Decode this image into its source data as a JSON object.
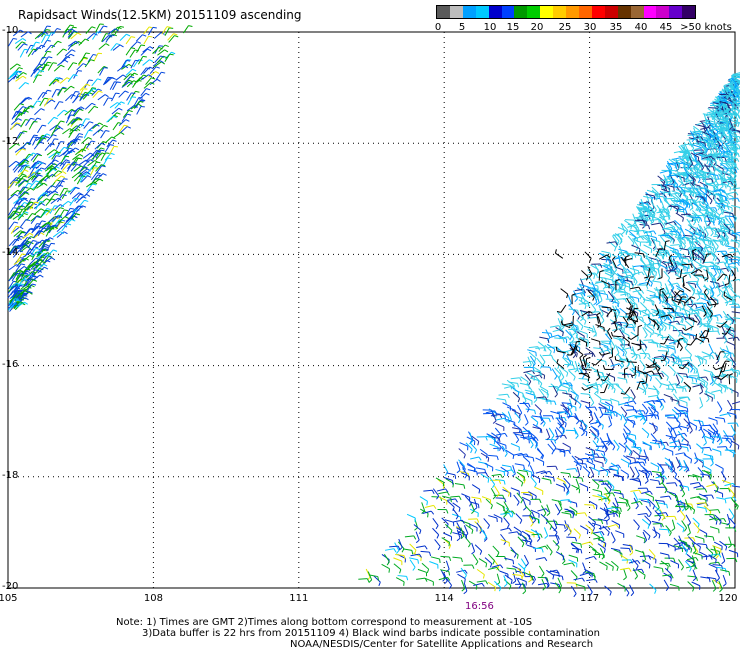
{
  "title": "Rapidsact Winds(12.5KM) 20151109 ascending",
  "legend": {
    "colors": [
      "#5a5a5a",
      "#bdbdbd",
      "#00a0ff",
      "#00c8ff",
      "#0000cc",
      "#0040ff",
      "#009900",
      "#00cc00",
      "#ffff00",
      "#ffcc00",
      "#ff9900",
      "#ff6600",
      "#ff0000",
      "#cc0000",
      "#663300",
      "#996633",
      "#ff00ff",
      "#cc00cc",
      "#6600cc",
      "#330066"
    ],
    "labels": [
      "0",
      "5",
      "10",
      "15",
      "20",
      "25",
      "30",
      "35",
      "40",
      "45",
      ">50 knots"
    ]
  },
  "map": {
    "lat_labels": [
      "-10",
      "-12",
      "-14",
      "-16",
      "-18",
      "-20"
    ],
    "lon_labels": [
      "105",
      "108",
      "111",
      "114",
      "117",
      "120"
    ],
    "pass_time": "16:56",
    "swath_note": "wind barbs colored by speed"
  },
  "notes": {
    "line1": "Note: 1) Times are GMT 2)Times along bottom correspond to measurement at -10S",
    "line2": "3)Data buffer is 22 hrs from 20151109 4) Black wind barbs indicate possible contamination",
    "line3": "NOAA/NESDIS/Center for Satellite Applications and Research"
  }
}
